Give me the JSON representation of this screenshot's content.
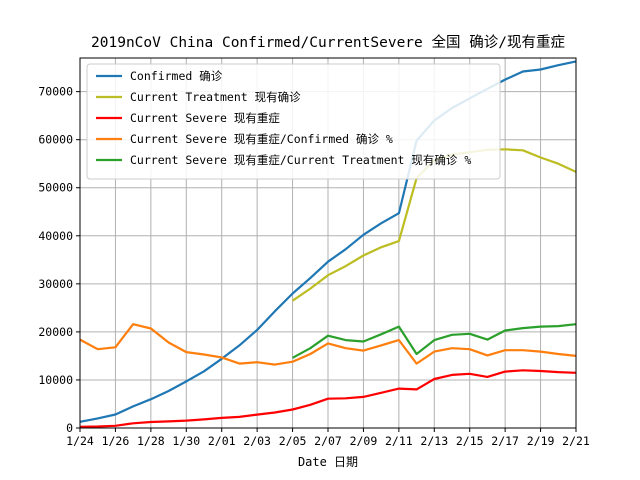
{
  "chart_data": {
    "type": "line",
    "title": "2019nCoV China Confirmed/CurrentSevere 全国 确诊/现有重症",
    "xlabel": "Date 日期",
    "ylabel": "",
    "x_tick_labels": [
      "1/24",
      "1/26",
      "1/28",
      "1/30",
      "2/01",
      "2/03",
      "2/05",
      "2/07",
      "2/09",
      "2/11",
      "2/13",
      "2/15",
      "2/17",
      "2/19",
      "2/21"
    ],
    "y_ticks": [
      0,
      10000,
      20000,
      30000,
      40000,
      50000,
      60000,
      70000
    ],
    "xlim": [
      0,
      28
    ],
    "ylim": [
      0,
      77000
    ],
    "grid": true,
    "legend_position": "top-left",
    "dates": [
      "1/24",
      "1/25",
      "1/26",
      "1/27",
      "1/28",
      "1/29",
      "1/30",
      "1/31",
      "2/01",
      "2/02",
      "2/03",
      "2/04",
      "2/05",
      "2/06",
      "2/07",
      "2/08",
      "2/09",
      "2/10",
      "2/11",
      "2/12",
      "2/13",
      "2/14",
      "2/15",
      "2/16",
      "2/17",
      "2/18",
      "2/19",
      "2/20",
      "2/21"
    ],
    "series": [
      {
        "name": "Confirmed 确诊",
        "color": "#1f77b4",
        "values": [
          1300,
          2000,
          2800,
          4500,
          6000,
          7700,
          9700,
          11800,
          14400,
          17200,
          20400,
          24300,
          28000,
          31200,
          34600,
          37200,
          40200,
          42600,
          44700,
          59800,
          64000,
          66600,
          68600,
          70600,
          72500,
          74200,
          74600,
          75500,
          76300
        ]
      },
      {
        "name": "Current Treatment 现有确诊",
        "color": "#bcbd22",
        "values": [
          null,
          null,
          null,
          null,
          null,
          null,
          null,
          null,
          null,
          null,
          null,
          null,
          26500,
          29000,
          31800,
          33700,
          35900,
          37600,
          38900,
          52000,
          55700,
          56900,
          57400,
          57900,
          58000,
          57800,
          56300,
          55000,
          53300
        ]
      },
      {
        "name": "Current Severe 现有重症",
        "color": "#ff0000",
        "values": [
          240,
          320,
          460,
          980,
          1250,
          1370,
          1530,
          1800,
          2110,
          2300,
          2790,
          3220,
          3860,
          4820,
          6100,
          6190,
          6480,
          7330,
          8200,
          8030,
          10200,
          11050,
          11270,
          10640,
          11740,
          12000,
          11860,
          11630,
          11480
        ]
      },
      {
        "name": "Current Severe 现有重症/Confirmed 确诊 %",
        "color": "#ff7f0e",
        "values": [
          18400,
          16400,
          16800,
          21600,
          20700,
          17800,
          15800,
          15300,
          14700,
          13400,
          13700,
          13200,
          13800,
          15400,
          17600,
          16600,
          16100,
          17200,
          18300,
          13400,
          15900,
          16600,
          16400,
          15100,
          16200,
          16200,
          15900,
          15400,
          15000
        ]
      },
      {
        "name": "Current Severe 现有重症/Current Treatment 现有确诊 %",
        "color": "#2ca02c",
        "values": [
          null,
          null,
          null,
          null,
          null,
          null,
          null,
          null,
          null,
          null,
          null,
          null,
          14600,
          16600,
          19200,
          18300,
          18000,
          19500,
          21100,
          15400,
          18300,
          19400,
          19600,
          18400,
          20300,
          20800,
          21100,
          21200,
          21600
        ]
      }
    ]
  }
}
